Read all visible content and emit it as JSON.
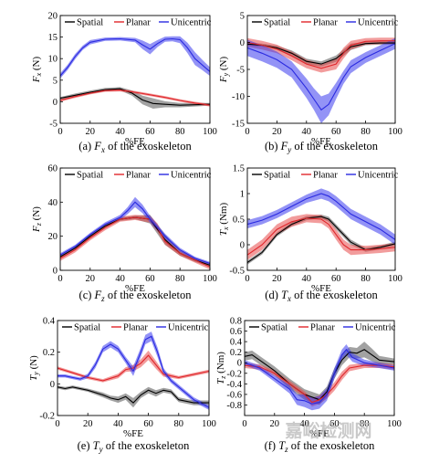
{
  "colors": {
    "spatial": "#000000",
    "planar": "#e0262b",
    "unicentric": "#2a2ae0",
    "spatial_band": "#555555",
    "planar_band": "#e84a4a",
    "unicentric_band": "#3a3aee"
  },
  "watermark": "嘉峪检测网",
  "chart_data": [
    {
      "type": "line",
      "panel": "a",
      "caption_prefix": "(a) ",
      "caption_sym": "F",
      "caption_sub": "x",
      "caption_suffix": " of the exoskeleton",
      "ylabel": "F",
      "ylabel_sub": "x",
      "ylabel_unit": " (N)",
      "xlabel": "%FE",
      "xlim": [
        0,
        100
      ],
      "ylim": [
        -5,
        20
      ],
      "xticks": [
        0,
        20,
        40,
        60,
        80,
        100
      ],
      "yticks": [
        -5,
        0,
        5,
        10,
        15,
        20
      ],
      "legend": [
        "Spatial",
        "Planar",
        "Unicentric"
      ],
      "series": [
        {
          "name": "Spatial",
          "x": [
            0,
            10,
            20,
            30,
            40,
            48,
            55,
            62,
            70,
            80,
            90,
            100
          ],
          "y": [
            0.8,
            1.5,
            2.2,
            2.8,
            3.0,
            2.0,
            0.4,
            -0.4,
            -0.6,
            -0.8,
            -0.7,
            -0.6
          ],
          "band": [
            0.3,
            0.4,
            0.4,
            0.4,
            0.4,
            0.6,
            1.0,
            1.2,
            0.7,
            0.5,
            0.4,
            0.3
          ]
        },
        {
          "name": "Planar",
          "x": [
            0,
            10,
            20,
            30,
            40,
            50,
            60,
            70,
            80,
            90,
            100
          ],
          "y": [
            0.3,
            1.2,
            2.0,
            2.6,
            2.7,
            2.2,
            1.6,
            1.0,
            0.3,
            -0.3,
            -0.8
          ],
          "band": [
            0.3,
            0.3,
            0.3,
            0.3,
            0.3,
            0.3,
            0.3,
            0.3,
            0.3,
            0.3,
            0.3
          ]
        },
        {
          "name": "Unicentric",
          "x": [
            0,
            5,
            10,
            15,
            20,
            30,
            40,
            50,
            55,
            60,
            65,
            70,
            75,
            80,
            85,
            90,
            95,
            100
          ],
          "y": [
            6,
            8,
            10.5,
            12.5,
            13.8,
            14.5,
            14.6,
            14.3,
            13.2,
            12.2,
            13.5,
            14.5,
            14.6,
            14.4,
            12.5,
            10,
            8.5,
            7
          ],
          "band": [
            0.6,
            0.6,
            0.6,
            0.5,
            0.5,
            0.4,
            0.4,
            0.5,
            1.0,
            1.2,
            0.8,
            0.6,
            0.6,
            0.8,
            1.2,
            1.5,
            1.2,
            1.0
          ]
        }
      ]
    },
    {
      "type": "line",
      "panel": "b",
      "caption_prefix": "(b) ",
      "caption_sym": "F",
      "caption_sub": "y",
      "caption_suffix": " of the exoskeleton",
      "ylabel": "F",
      "ylabel_sub": "y",
      "ylabel_unit": " (N)",
      "xlabel": "%FE",
      "xlim": [
        0,
        100
      ],
      "ylim": [
        -15,
        5
      ],
      "xticks": [
        0,
        20,
        40,
        60,
        80,
        100
      ],
      "yticks": [
        -15,
        -10,
        -5,
        0,
        5
      ],
      "legend": [
        "Spatial",
        "Planar",
        "Unicentric"
      ],
      "series": [
        {
          "name": "Spatial",
          "x": [
            0,
            10,
            20,
            30,
            40,
            50,
            60,
            70,
            80,
            90,
            100
          ],
          "y": [
            -0.3,
            -0.5,
            -1.0,
            -2.0,
            -3.5,
            -4.0,
            -3.0,
            -0.8,
            -0.2,
            -0.1,
            -0.1
          ],
          "band": [
            0.3,
            0.3,
            0.4,
            0.5,
            0.5,
            0.5,
            0.6,
            0.6,
            0.3,
            0.3,
            0.3
          ]
        },
        {
          "name": "Planar",
          "x": [
            0,
            10,
            20,
            30,
            40,
            50,
            60,
            65,
            70,
            80,
            90,
            100
          ],
          "y": [
            0,
            -0.5,
            -1.2,
            -2.5,
            -4.0,
            -4.8,
            -4.0,
            -2.0,
            -0.5,
            0.2,
            0.3,
            0.3
          ],
          "band": [
            0.8,
            0.8,
            0.8,
            0.8,
            0.8,
            0.8,
            1.0,
            1.0,
            0.8,
            0.6,
            0.6,
            0.6
          ]
        },
        {
          "name": "Unicentric",
          "x": [
            0,
            10,
            20,
            30,
            40,
            45,
            50,
            55,
            60,
            65,
            70,
            80,
            90,
            100
          ],
          "y": [
            -1.0,
            -2.0,
            -3.2,
            -5.0,
            -8.5,
            -10.5,
            -12.5,
            -11.5,
            -9.0,
            -6.5,
            -4.5,
            -2.8,
            -1.5,
            -0.2
          ],
          "band": [
            1.5,
            1.5,
            1.5,
            1.5,
            1.8,
            2.0,
            2.5,
            2.0,
            1.5,
            1.2,
            1.2,
            1.0,
            1.0,
            1.0
          ]
        }
      ]
    },
    {
      "type": "line",
      "panel": "c",
      "caption_prefix": "(c) ",
      "caption_sym": "F",
      "caption_sub": "z",
      "caption_suffix": " of the exoskeleton",
      "ylabel": "F",
      "ylabel_sub": "z",
      "ylabel_unit": " (N)",
      "xlabel": "%FE",
      "xlim": [
        0,
        100
      ],
      "ylim": [
        0,
        60
      ],
      "xticks": [
        0,
        20,
        40,
        60,
        80,
        100
      ],
      "yticks": [
        0,
        20,
        40,
        60
      ],
      "legend": [
        "Spatial",
        "Planar",
        "Unicentric"
      ],
      "series": [
        {
          "name": "Spatial",
          "x": [
            0,
            10,
            20,
            30,
            40,
            50,
            60,
            70,
            80,
            90,
            100
          ],
          "y": [
            8,
            13,
            20,
            26,
            30,
            31,
            30,
            18,
            10,
            6,
            3
          ],
          "band": [
            1.0,
            1.0,
            1.0,
            1.0,
            1.0,
            1.0,
            2.5,
            3.0,
            1.5,
            1.0,
            1.0
          ]
        },
        {
          "name": "Planar",
          "x": [
            0,
            10,
            20,
            30,
            40,
            50,
            60,
            65,
            70,
            80,
            90,
            100
          ],
          "y": [
            7,
            12,
            19,
            25,
            30,
            31,
            30,
            25,
            17,
            10,
            6,
            2
          ],
          "band": [
            1.5,
            1.5,
            1.5,
            1.5,
            1.5,
            1.5,
            2.0,
            2.5,
            2.0,
            1.5,
            1.5,
            1.5
          ]
        },
        {
          "name": "Unicentric",
          "x": [
            0,
            10,
            20,
            30,
            40,
            45,
            50,
            55,
            60,
            70,
            80,
            90,
            100
          ],
          "y": [
            9,
            14,
            21,
            27,
            31,
            35,
            40,
            36,
            30,
            20,
            12,
            7,
            4
          ],
          "band": [
            1.0,
            1.0,
            1.0,
            1.2,
            1.5,
            2.0,
            3.0,
            2.5,
            2.0,
            1.5,
            1.2,
            1.0,
            1.0
          ]
        }
      ]
    },
    {
      "type": "line",
      "panel": "d",
      "caption_prefix": "(d) ",
      "caption_sym": "T",
      "caption_sub": "x",
      "caption_suffix": " of the exoskeleton",
      "ylabel": "T",
      "ylabel_sub": "x",
      "ylabel_unit": " (Nm)",
      "xlabel": "%FE",
      "xlim": [
        0,
        100
      ],
      "ylim": [
        -0.5,
        1.5
      ],
      "xticks": [
        0,
        20,
        40,
        60,
        80,
        100
      ],
      "yticks": [
        -0.5,
        0,
        0.5,
        1.0,
        1.5
      ],
      "legend": [
        "Spatial",
        "Planar",
        "Unicentric"
      ],
      "series": [
        {
          "name": "Spatial",
          "x": [
            0,
            10,
            20,
            30,
            40,
            50,
            55,
            60,
            70,
            80,
            90,
            100
          ],
          "y": [
            -0.35,
            -0.15,
            0.2,
            0.4,
            0.52,
            0.55,
            0.5,
            0.35,
            0.05,
            -0.1,
            -0.05,
            0.02
          ],
          "band": [
            0.04,
            0.04,
            0.04,
            0.04,
            0.04,
            0.04,
            0.05,
            0.05,
            0.05,
            0.04,
            0.04,
            0.04
          ]
        },
        {
          "name": "Planar",
          "x": [
            0,
            10,
            20,
            30,
            40,
            50,
            55,
            60,
            65,
            70,
            80,
            90,
            100
          ],
          "y": [
            -0.2,
            0.0,
            0.3,
            0.45,
            0.52,
            0.5,
            0.4,
            0.2,
            0.0,
            -0.1,
            -0.1,
            -0.08,
            -0.05
          ],
          "band": [
            0.1,
            0.1,
            0.1,
            0.1,
            0.08,
            0.08,
            0.08,
            0.1,
            0.1,
            0.1,
            0.08,
            0.08,
            0.08
          ]
        },
        {
          "name": "Unicentric",
          "x": [
            0,
            10,
            20,
            30,
            40,
            50,
            55,
            60,
            70,
            80,
            90,
            100
          ],
          "y": [
            0.4,
            0.48,
            0.6,
            0.75,
            0.9,
            1.0,
            0.95,
            0.85,
            0.6,
            0.45,
            0.3,
            0.1
          ],
          "band": [
            0.08,
            0.08,
            0.08,
            0.08,
            0.08,
            0.1,
            0.1,
            0.1,
            0.1,
            0.1,
            0.1,
            0.1
          ]
        }
      ]
    },
    {
      "type": "line",
      "panel": "e",
      "caption_prefix": "(e) ",
      "caption_sym": "T",
      "caption_sub": "y",
      "caption_suffix": " of the exoskeleton",
      "ylabel": "T",
      "ylabel_sub": "y",
      "ylabel_unit": " (N)",
      "xlabel": "%FE",
      "xlim": [
        0,
        100
      ],
      "ylim": [
        -0.2,
        0.4
      ],
      "xticks": [
        0,
        20,
        40,
        60,
        80,
        100
      ],
      "yticks": [
        -0.2,
        0,
        0.2,
        0.4
      ],
      "legend": [
        "Spatial",
        "Planar",
        "Unicentric"
      ],
      "series": [
        {
          "name": "Spatial",
          "x": [
            0,
            5,
            10,
            20,
            30,
            35,
            40,
            45,
            50,
            55,
            60,
            65,
            70,
            75,
            80,
            90,
            100
          ],
          "y": [
            -0.02,
            -0.03,
            -0.02,
            -0.04,
            -0.07,
            -0.09,
            -0.1,
            -0.08,
            -0.12,
            -0.07,
            -0.04,
            -0.06,
            -0.04,
            -0.05,
            -0.1,
            -0.12,
            -0.12
          ],
          "band": [
            0.01,
            0.01,
            0.01,
            0.01,
            0.015,
            0.015,
            0.02,
            0.02,
            0.03,
            0.02,
            0.02,
            0.02,
            0.015,
            0.015,
            0.015,
            0.015,
            0.015
          ]
        },
        {
          "name": "Planar",
          "x": [
            0,
            10,
            20,
            30,
            40,
            45,
            50,
            55,
            60,
            65,
            70,
            80,
            90,
            100
          ],
          "y": [
            0.1,
            0.07,
            0.04,
            0.02,
            0.05,
            0.09,
            0.1,
            0.13,
            0.18,
            0.12,
            0.06,
            0.04,
            0.06,
            0.08
          ],
          "band": [
            0.01,
            0.01,
            0.01,
            0.01,
            0.015,
            0.015,
            0.02,
            0.025,
            0.03,
            0.025,
            0.015,
            0.01,
            0.01,
            0.01
          ]
        },
        {
          "name": "Unicentric",
          "x": [
            0,
            5,
            10,
            15,
            20,
            25,
            30,
            35,
            40,
            45,
            50,
            55,
            58,
            62,
            66,
            70,
            75,
            80,
            90,
            100
          ],
          "y": [
            0.05,
            0.05,
            0.04,
            0.03,
            0.05,
            0.12,
            0.22,
            0.25,
            0.22,
            0.15,
            0.08,
            0.2,
            0.28,
            0.3,
            0.2,
            0.08,
            0.02,
            -0.02,
            -0.1,
            -0.15
          ],
          "band": [
            0.01,
            0.01,
            0.01,
            0.01,
            0.015,
            0.02,
            0.02,
            0.02,
            0.02,
            0.02,
            0.03,
            0.03,
            0.03,
            0.03,
            0.03,
            0.02,
            0.015,
            0.015,
            0.015,
            0.015
          ]
        }
      ]
    },
    {
      "type": "line",
      "panel": "f",
      "caption_prefix": "(f) ",
      "caption_sym": "T",
      "caption_sub": "z",
      "caption_suffix": " of the exoskeleton",
      "ylabel": "T",
      "ylabel_sub": "z",
      "ylabel_unit": " (Nm)",
      "xlabel": "%FE",
      "xlim": [
        0,
        100
      ],
      "ylim": [
        -1.0,
        0.8
      ],
      "xticks": [
        0,
        20,
        40,
        60,
        80,
        100
      ],
      "yticks": [
        -0.8,
        -0.6,
        -0.4,
        -0.2,
        0,
        0.2,
        0.4,
        0.6,
        0.8
      ],
      "legend": [
        "Spatial",
        "Planar",
        "Unicentric"
      ],
      "series": [
        {
          "name": "Spatial",
          "x": [
            0,
            5,
            10,
            20,
            30,
            40,
            50,
            55,
            60,
            65,
            70,
            75,
            80,
            85,
            90,
            100
          ],
          "y": [
            0.12,
            0.15,
            0.05,
            -0.15,
            -0.4,
            -0.6,
            -0.7,
            -0.55,
            -0.2,
            0.05,
            0.2,
            0.18,
            0.25,
            0.15,
            0.05,
            0.02
          ],
          "band": [
            0.08,
            0.08,
            0.08,
            0.08,
            0.1,
            0.1,
            0.1,
            0.1,
            0.1,
            0.1,
            0.1,
            0.1,
            0.15,
            0.12,
            0.08,
            0.06
          ]
        },
        {
          "name": "Planar",
          "x": [
            0,
            10,
            20,
            30,
            40,
            45,
            50,
            55,
            60,
            65,
            70,
            80,
            90,
            100
          ],
          "y": [
            -0.05,
            -0.08,
            -0.2,
            -0.4,
            -0.6,
            -0.75,
            -0.7,
            -0.6,
            -0.45,
            -0.25,
            -0.1,
            -0.05,
            -0.05,
            -0.08
          ],
          "band": [
            0.05,
            0.05,
            0.05,
            0.06,
            0.06,
            0.08,
            0.08,
            0.08,
            0.08,
            0.08,
            0.06,
            0.05,
            0.05,
            0.05
          ]
        },
        {
          "name": "Unicentric",
          "x": [
            0,
            10,
            20,
            30,
            35,
            40,
            45,
            50,
            55,
            60,
            65,
            68,
            72,
            80,
            90,
            100
          ],
          "y": [
            0.0,
            -0.1,
            -0.3,
            -0.5,
            -0.7,
            -0.72,
            -0.78,
            -0.75,
            -0.6,
            -0.2,
            0.15,
            0.25,
            0.1,
            0.0,
            -0.05,
            -0.1
          ],
          "band": [
            0.05,
            0.05,
            0.06,
            0.08,
            0.1,
            0.12,
            0.12,
            0.12,
            0.12,
            0.1,
            0.1,
            0.1,
            0.08,
            0.06,
            0.05,
            0.05
          ]
        }
      ]
    }
  ]
}
